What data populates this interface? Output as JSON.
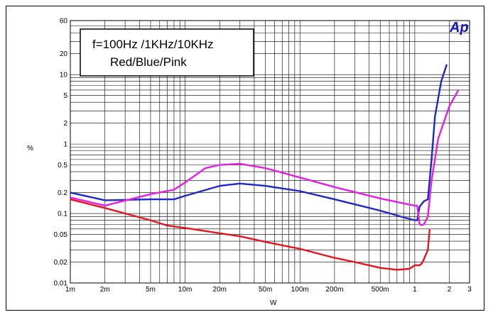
{
  "chart_data": {
    "type": "line",
    "title": "",
    "xlabel": "W",
    "ylabel": "%",
    "xscale": "log",
    "yscale": "log",
    "xlim": [
      0.001,
      3
    ],
    "ylim": [
      0.01,
      60
    ],
    "grid": true,
    "x_tick_labels": [
      "1m",
      "2m",
      "5m",
      "10m",
      "20m",
      "50m",
      "100m",
      "200m",
      "500m",
      "1",
      "2",
      "3"
    ],
    "x_tick_values": [
      0.001,
      0.002,
      0.005,
      0.01,
      0.02,
      0.05,
      0.1,
      0.2,
      0.5,
      1,
      2,
      3
    ],
    "y_tick_labels": [
      "0.01",
      "0.02",
      "0.05",
      "0.1",
      "0.2",
      "0.5",
      "1",
      "2",
      "5",
      "10",
      "20",
      "60"
    ],
    "y_tick_values": [
      0.01,
      0.02,
      0.05,
      0.1,
      0.2,
      0.5,
      1,
      2,
      5,
      10,
      20,
      60
    ],
    "annotation_lines": [
      "f=100Hz /1KHz/10KHz",
      "Red/Blue/Pink"
    ],
    "logo": "Ap",
    "series": [
      {
        "color": "#e8141e",
        "x": [
          0.001,
          0.002,
          0.005,
          0.007,
          0.01,
          0.02,
          0.03,
          0.05,
          0.1,
          0.2,
          0.3,
          0.5,
          0.7,
          0.9,
          1.0,
          1.1,
          1.15,
          1.2,
          1.3,
          1.35
        ],
        "y": [
          0.16,
          0.12,
          0.08,
          0.067,
          0.062,
          0.052,
          0.047,
          0.039,
          0.031,
          0.023,
          0.02,
          0.0165,
          0.0155,
          0.016,
          0.018,
          0.018,
          0.019,
          0.022,
          0.03,
          0.06
        ]
      },
      {
        "color": "#1e28c8",
        "x": [
          0.001,
          0.002,
          0.005,
          0.008,
          0.01,
          0.02,
          0.03,
          0.05,
          0.1,
          0.2,
          0.5,
          0.8,
          1.0,
          1.05,
          1.1,
          1.2,
          1.3,
          1.4,
          1.5,
          1.7,
          1.9
        ],
        "y": [
          0.2,
          0.155,
          0.16,
          0.16,
          0.18,
          0.25,
          0.27,
          0.25,
          0.21,
          0.16,
          0.11,
          0.088,
          0.08,
          0.08,
          0.125,
          0.15,
          0.16,
          0.6,
          2.5,
          8,
          14
        ]
      },
      {
        "color": "#e61ee6",
        "x": [
          0.001,
          0.002,
          0.005,
          0.008,
          0.01,
          0.015,
          0.02,
          0.03,
          0.05,
          0.1,
          0.2,
          0.5,
          0.8,
          1.0,
          1.05,
          1.1,
          1.15,
          1.2,
          1.3,
          1.4,
          1.6,
          2.0,
          2.4
        ],
        "y": [
          0.17,
          0.13,
          0.19,
          0.22,
          0.28,
          0.45,
          0.5,
          0.52,
          0.45,
          0.33,
          0.24,
          0.165,
          0.14,
          0.13,
          0.13,
          0.07,
          0.068,
          0.07,
          0.09,
          0.3,
          1.2,
          3.5,
          6
        ]
      }
    ]
  }
}
